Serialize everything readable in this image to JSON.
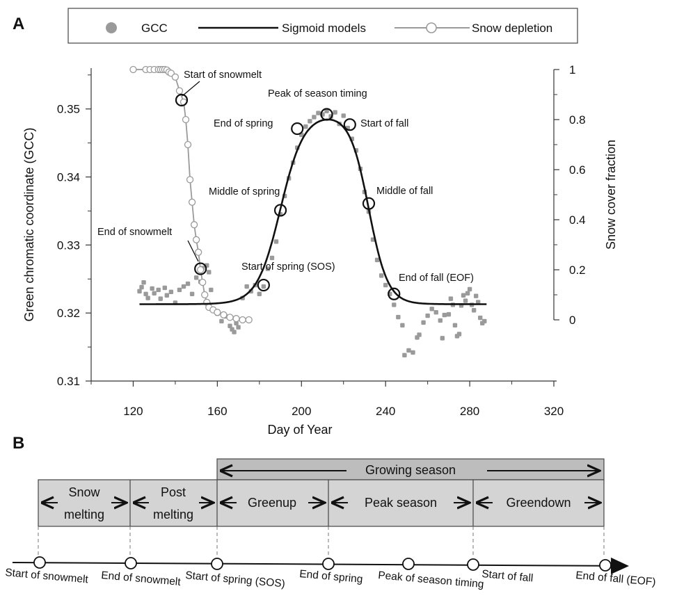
{
  "panel_a_label": "A",
  "panel_b_label": "B",
  "legend": {
    "gcc": "GCC",
    "sigmoid": "Sigmoid models",
    "snow": "Snow depletion"
  },
  "colors": {
    "gcc_points": "#9a9a9a",
    "sigmoid_line": "#111111",
    "snow_line": "#9a9a9a",
    "phase_fill": "#d4d4d4",
    "growing_fill": "#bdbdbd"
  },
  "chart_data": {
    "type": "scatter",
    "title": "",
    "xlabel": "Day of Year",
    "ylabel": "Green chromatic coordinate (GCC)",
    "y2label": "Snow cover fraction",
    "xlim": [
      100,
      320
    ],
    "ylim": [
      0.31,
      0.356
    ],
    "y2lim": [
      0,
      1
    ],
    "xticks": [
      120,
      160,
      200,
      240,
      280,
      320
    ],
    "yticks": [
      0.31,
      0.32,
      0.33,
      0.34,
      0.35
    ],
    "y2ticks": [
      0,
      0.2,
      0.4,
      0.6,
      0.8,
      1
    ],
    "legend_position": "top",
    "series": [
      {
        "name": "GCC",
        "kind": "scatter",
        "points": [
          [
            123,
            0.3232
          ],
          [
            124,
            0.3238
          ],
          [
            125,
            0.3245
          ],
          [
            126,
            0.3228
          ],
          [
            127,
            0.3222
          ],
          [
            129,
            0.3236
          ],
          [
            130,
            0.3229
          ],
          [
            132,
            0.3234
          ],
          [
            133,
            0.3221
          ],
          [
            135,
            0.3237
          ],
          [
            136,
            0.3226
          ],
          [
            138,
            0.3231
          ],
          [
            140,
            0.3215
          ],
          [
            142,
            0.3234
          ],
          [
            144,
            0.3239
          ],
          [
            146,
            0.3243
          ],
          [
            148,
            0.3228
          ],
          [
            150,
            0.3252
          ],
          [
            152,
            0.3246
          ],
          [
            153,
            0.3266
          ],
          [
            155,
            0.327
          ],
          [
            156,
            0.326
          ],
          [
            157,
            0.3234
          ],
          [
            158,
            0.3206
          ],
          [
            160,
            0.3199
          ],
          [
            162,
            0.3188
          ],
          [
            164,
            0.3195
          ],
          [
            166,
            0.3181
          ],
          [
            167,
            0.3176
          ],
          [
            168,
            0.3172
          ],
          [
            169,
            0.3185
          ],
          [
            170,
            0.3179
          ],
          [
            172,
            0.3222
          ],
          [
            174,
            0.3239
          ],
          [
            176,
            0.3232
          ],
          [
            178,
            0.3241
          ],
          [
            180,
            0.3228
          ],
          [
            182,
            0.3239
          ],
          [
            184,
            0.3265
          ],
          [
            186,
            0.3281
          ],
          [
            188,
            0.3305
          ],
          [
            190,
            0.3345
          ],
          [
            192,
            0.3372
          ],
          [
            194,
            0.3398
          ],
          [
            196,
            0.3421
          ],
          [
            198,
            0.3443
          ],
          [
            200,
            0.3462
          ],
          [
            202,
            0.3474
          ],
          [
            204,
            0.3482
          ],
          [
            206,
            0.3488
          ],
          [
            208,
            0.3494
          ],
          [
            210,
            0.3492
          ],
          [
            212,
            0.3497
          ],
          [
            214,
            0.3489
          ],
          [
            216,
            0.3495
          ],
          [
            218,
            0.3478
          ],
          [
            220,
            0.349
          ],
          [
            222,
            0.3472
          ],
          [
            224,
            0.3456
          ],
          [
            226,
            0.3439
          ],
          [
            228,
            0.3412
          ],
          [
            230,
            0.3378
          ],
          [
            232,
            0.3349
          ],
          [
            234,
            0.3308
          ],
          [
            236,
            0.3278
          ],
          [
            238,
            0.3255
          ],
          [
            240,
            0.3241
          ],
          [
            242,
            0.3228
          ],
          [
            244,
            0.3212
          ],
          [
            246,
            0.3194
          ],
          [
            248,
            0.3182
          ],
          [
            249,
            0.3138
          ],
          [
            251,
            0.3145
          ],
          [
            253,
            0.3142
          ],
          [
            255,
            0.3164
          ],
          [
            256,
            0.3168
          ],
          [
            258,
            0.3186
          ],
          [
            260,
            0.3196
          ],
          [
            262,
            0.3206
          ],
          [
            264,
            0.3201
          ],
          [
            266,
            0.3189
          ],
          [
            267,
            0.3163
          ],
          [
            268,
            0.3197
          ],
          [
            270,
            0.3198
          ],
          [
            271,
            0.3221
          ],
          [
            272,
            0.3212
          ],
          [
            273,
            0.3182
          ],
          [
            274,
            0.3166
          ],
          [
            275,
            0.3169
          ],
          [
            276,
            0.3211
          ],
          [
            277,
            0.3226
          ],
          [
            278,
            0.3218
          ],
          [
            279,
            0.3229
          ],
          [
            280,
            0.3235
          ],
          [
            281,
            0.3212
          ],
          [
            282,
            0.3204
          ],
          [
            283,
            0.3225
          ],
          [
            284,
            0.3216
          ],
          [
            285,
            0.3193
          ],
          [
            286,
            0.3185
          ],
          [
            287,
            0.3188
          ]
        ]
      },
      {
        "name": "Sigmoid models",
        "kind": "line",
        "base": 0.3213,
        "amplitude": 0.028,
        "spring_mid": 190,
        "spring_rate": 0.18,
        "fall_mid": 232,
        "fall_rate": 0.22,
        "x_range": [
          123,
          288
        ]
      },
      {
        "name": "Snow depletion",
        "kind": "line_markers",
        "axis": "y2",
        "points": [
          [
            120,
            1.0
          ],
          [
            126,
            1.0
          ],
          [
            128,
            1.0
          ],
          [
            130,
            1.0
          ],
          [
            132,
            1.0
          ],
          [
            133,
            1.0
          ],
          [
            134,
            1.0
          ],
          [
            135,
            1.0
          ],
          [
            136,
            0.998
          ],
          [
            137,
            0.99
          ],
          [
            138,
            0.985
          ],
          [
            140,
            0.97
          ],
          [
            142,
            0.915
          ],
          [
            144,
            0.87
          ],
          [
            145,
            0.8
          ],
          [
            146,
            0.7
          ],
          [
            147,
            0.56
          ],
          [
            148,
            0.47
          ],
          [
            149,
            0.38
          ],
          [
            150,
            0.32
          ],
          [
            151,
            0.27
          ],
          [
            152,
            0.2
          ],
          [
            153,
            0.15
          ],
          [
            154,
            0.1
          ],
          [
            155,
            0.07
          ],
          [
            156,
            0.05
          ],
          [
            158,
            0.04
          ],
          [
            160,
            0.03
          ],
          [
            163,
            0.02
          ],
          [
            166,
            0.01
          ],
          [
            169,
            0.005
          ],
          [
            172,
            0.0
          ],
          [
            175,
            0.0
          ]
        ]
      }
    ],
    "markers": [
      {
        "label": "Start of snowmelt",
        "x": 143,
        "y": 0.3513
      },
      {
        "label": "End of snowmelt",
        "x": 152,
        "y": 0.3265
      },
      {
        "label": "Start of spring (SOS)",
        "x": 182,
        "y": 0.3241
      },
      {
        "label": "Middle of spring",
        "x": 190,
        "y": 0.3351
      },
      {
        "label": "End of spring",
        "x": 198,
        "y": 0.3471
      },
      {
        "label": "Peak of season timing",
        "x": 212,
        "y": 0.3492
      },
      {
        "label": "Start of fall",
        "x": 223,
        "y": 0.3477
      },
      {
        "label": "Middle of fall",
        "x": 232,
        "y": 0.3361
      },
      {
        "label": "End of fall (EOF)",
        "x": 244,
        "y": 0.3228
      }
    ]
  },
  "panel_b": {
    "growing_season": "Growing season",
    "phases": [
      {
        "line1": "Snow",
        "line2": "melting"
      },
      {
        "line1": "Post",
        "line2": "melting"
      },
      {
        "line1": "Greenup"
      },
      {
        "line1": "Peak season"
      },
      {
        "line1": "Greendown"
      }
    ],
    "timeline_labels": [
      "Start of snowmelt",
      "End of snowmelt",
      "Start of spring (SOS)",
      "End of spring",
      "Peak of season timing",
      "Start of fall",
      "End of fall (EOF)"
    ]
  }
}
